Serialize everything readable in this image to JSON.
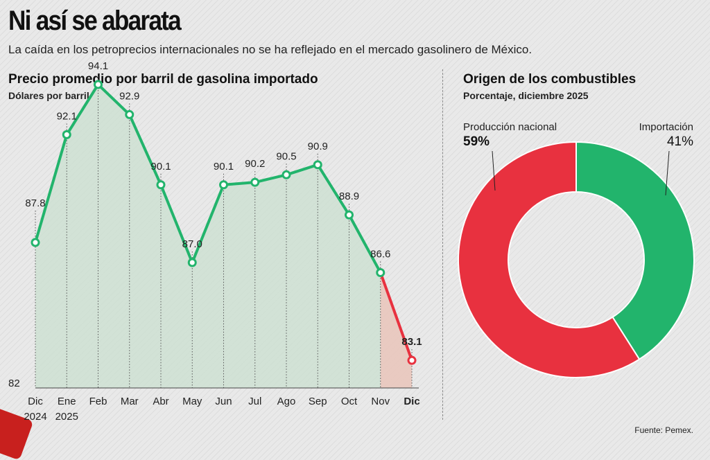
{
  "header": {
    "title": "Ni así se abarata",
    "subtitle": "La caída en los petroprecios internacionales no se ha reflejado en el mercado gasolinero de México."
  },
  "source": "Fuente: Pemex.",
  "colors": {
    "green": "#22b46c",
    "red": "#e8313f",
    "green_fill": "#c9dfcf",
    "red_fill": "#e9c6bd"
  },
  "chart_data": [
    {
      "type": "line",
      "title": "Precio promedio por barril de gasolina importado",
      "subtitle": "Dólares por barril",
      "categories": [
        "Dic\n2024",
        "Ene\n2025",
        "Feb",
        "Mar",
        "Abr",
        "May",
        "Jun",
        "Jul",
        "Ago",
        "Sep",
        "Oct",
        "Nov",
        "Dic"
      ],
      "values": [
        87.8,
        92.1,
        94.1,
        92.9,
        90.1,
        87.0,
        90.1,
        90.2,
        90.5,
        90.9,
        88.9,
        86.6,
        83.1
      ],
      "labels": [
        "87.8",
        "92.1",
        "94.1",
        "92.9",
        "90.1",
        "87.0",
        "90.1",
        "90.2",
        "90.5",
        "90.9",
        "88.9",
        "86.6",
        "83.1"
      ],
      "y_axis_tick": "82",
      "ylim": [
        82,
        95
      ],
      "highlight_last": true
    },
    {
      "type": "pie",
      "title": "Origen de los combustibles",
      "subtitle": "Porcentaje, diciembre 2025",
      "slices": [
        {
          "name": "Producción nacional",
          "value": 59,
          "label": "59%",
          "color": "#e8313f"
        },
        {
          "name": "Importación",
          "value": 41,
          "label": "41%",
          "color": "#22b46c"
        }
      ]
    }
  ]
}
